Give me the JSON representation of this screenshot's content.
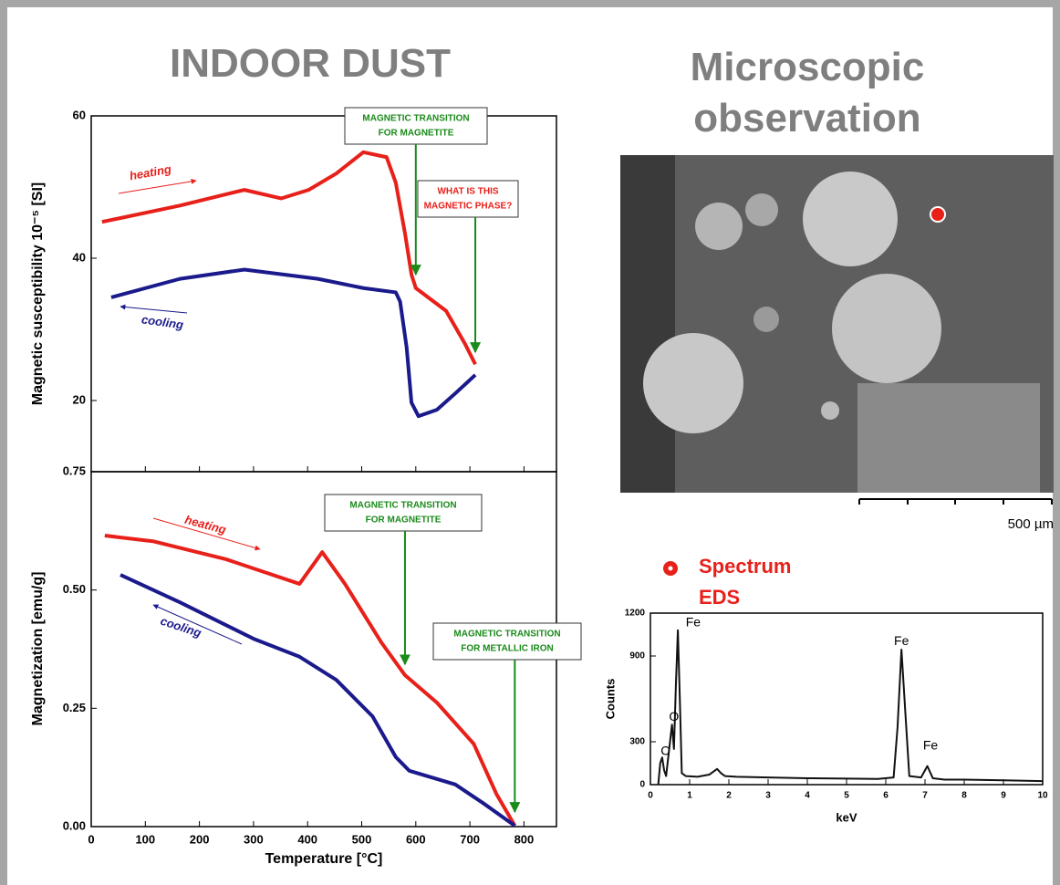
{
  "header": {
    "left": "INDOOR DUST",
    "right": "Microscopic observation"
  },
  "image": {
    "scale_label": "500 µm",
    "marker_label": "Spectrum EDS"
  },
  "chart_data": [
    {
      "type": "line",
      "ylabel": "Magnetic susceptibility 10⁻⁵ [SI]",
      "xlim": [
        0,
        860
      ],
      "xticks": [
        0,
        100,
        200,
        300,
        400,
        500,
        600,
        700,
        800
      ],
      "xtick_labels": false,
      "ylim": [
        10,
        60
      ],
      "yticks": [
        20,
        40,
        60
      ],
      "series": [
        {
          "name": "heating",
          "color": "#e8201a",
          "x": [
            20,
            164,
            283,
            351,
            402,
            453,
            503,
            546,
            563,
            580,
            592,
            600,
            656,
            690,
            710
          ],
          "values": [
            45.1,
            47.4,
            49.6,
            48.4,
            49.6,
            51.9,
            54.9,
            54.2,
            50.6,
            43.5,
            37.7,
            35.8,
            32.6,
            28.1,
            25.1
          ]
        },
        {
          "name": "cooling",
          "color": "#1a1a8c",
          "x": [
            710,
            673,
            639,
            605,
            592,
            583,
            571,
            563,
            503,
            419,
            283,
            164,
            37
          ],
          "values": [
            23.6,
            21,
            18.7,
            17.8,
            19.7,
            27.5,
            33.9,
            35.2,
            35.8,
            37.1,
            38.4,
            37.1,
            34.5
          ]
        }
      ],
      "annotations": [
        {
          "lines": [
            "MAGNETIC TRANSITION",
            "FOR MAGNETITE"
          ],
          "color": "#1a8a1a",
          "x": 600,
          "y": 37.7
        },
        {
          "lines": [
            "WHAT IS THIS",
            "MAGNETIC PHASE?"
          ],
          "color": "#e8201a",
          "x": 710,
          "y": 26.8
        }
      ]
    },
    {
      "type": "line",
      "xlabel": "Temperature [°C]",
      "ylabel": "Magnetization [emu/g]",
      "xlim": [
        0,
        860
      ],
      "xticks": [
        0,
        100,
        200,
        300,
        400,
        500,
        600,
        700,
        800
      ],
      "ylim": [
        0,
        0.75
      ],
      "yticks": [
        {
          "value": 0,
          "label": "0.00"
        },
        {
          "value": 0.25,
          "label": "0.25"
        },
        {
          "value": 0.5,
          "label": "0.50"
        },
        {
          "value": 0.75,
          "label": "0.75"
        }
      ],
      "series": [
        {
          "name": "heating",
          "color": "#e8201a",
          "x": [
            25,
            114,
            249,
            385,
            427,
            469,
            537,
            580,
            639,
            707,
            749,
            783
          ],
          "values": [
            0.615,
            0.603,
            0.565,
            0.513,
            0.58,
            0.513,
            0.388,
            0.32,
            0.262,
            0.175,
            0.069,
            0.002
          ]
        },
        {
          "name": "cooling",
          "color": "#1a1a8c",
          "x": [
            54,
            164,
            300,
            385,
            453,
            520,
            563,
            588,
            673,
            724,
            783
          ],
          "values": [
            0.532,
            0.474,
            0.397,
            0.359,
            0.31,
            0.233,
            0.147,
            0.118,
            0.089,
            0.05,
            0.002
          ]
        }
      ],
      "annotations": [
        {
          "lines": [
            "MAGNETIC TRANSITION",
            "FOR MAGNETITE"
          ],
          "color": "#1a8a1a",
          "x": 580,
          "y": 0.343
        },
        {
          "lines": [
            "MAGNETIC TRANSITION",
            "FOR METALLIC IRON"
          ],
          "color": "#1a8a1a",
          "x": 783,
          "y": 0.031
        }
      ]
    },
    {
      "type": "line",
      "xlabel": "keV",
      "ylabel": "Counts",
      "xlim": [
        0,
        10
      ],
      "xticks": [
        0,
        1,
        2,
        3,
        4,
        5,
        6,
        7,
        8,
        9,
        10
      ],
      "ylim": [
        0,
        1200
      ],
      "yticks": [
        0,
        300,
        900,
        1200
      ],
      "series": [
        {
          "color": "#111111",
          "x": [
            0.2,
            0.25,
            0.3,
            0.35,
            0.4,
            0.5,
            0.55,
            0.6,
            0.65,
            0.7,
            0.75,
            0.8,
            0.9,
            1.2,
            1.5,
            1.7,
            1.8,
            1.9,
            2.2,
            3,
            4,
            5,
            5.8,
            6.2,
            6.3,
            6.4,
            6.5,
            6.6,
            6.9,
            7.06,
            7.2,
            7.5,
            8,
            9,
            10
          ],
          "values": [
            0,
            150,
            190,
            100,
            60,
            300,
            420,
            250,
            700,
            1080,
            600,
            80,
            60,
            55,
            70,
            110,
            80,
            60,
            55,
            50,
            45,
            42,
            40,
            50,
            400,
            945,
            500,
            60,
            50,
            130,
            45,
            35,
            35,
            30,
            25
          ]
        }
      ],
      "annotations": [
        {
          "lines": [
            "C"
          ],
          "x": 0.38,
          "y": 230
        },
        {
          "lines": [
            "O"
          ],
          "x": 0.6,
          "y": 470
        },
        {
          "lines": [
            "Fe"
          ],
          "x": 1.09,
          "y": 1130
        },
        {
          "lines": [
            "Fe"
          ],
          "x": 6.4,
          "y": 1000
        },
        {
          "lines": [
            "Fe"
          ],
          "x": 7.14,
          "y": 270
        }
      ]
    }
  ]
}
